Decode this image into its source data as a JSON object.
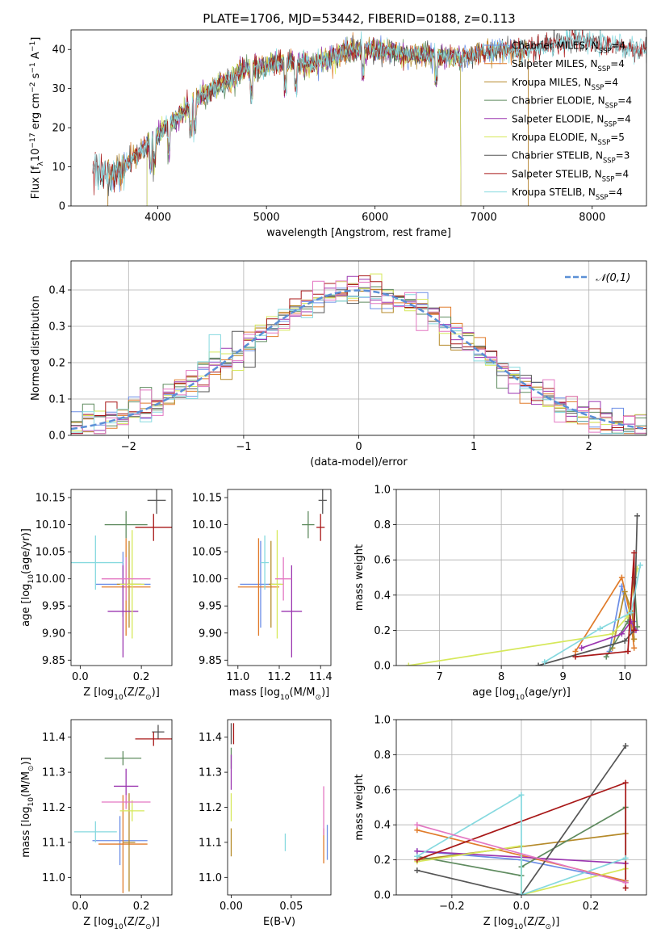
{
  "figure": {
    "title": "PLATE=1706, MJD=53442, FIBERID=0188, z=0.113",
    "colors": {
      "Chabrier MILES": "#6c8ee6",
      "Salpeter MILES": "#e07b2a",
      "Kroupa MILES": "#b58a2a",
      "Chabrier ELODIE": "#5f8b5f",
      "Salpeter ELODIE": "#9b36b0",
      "Kroupa ELODIE": "#d6e85a",
      "Chabrier STELIB": "#555555",
      "Salpeter STELIB": "#a81818",
      "Kroupa STELIB": "#86d9df",
      "extra pink": "#e377c2"
    }
  },
  "chart_data": [
    {
      "id": "spectrum",
      "type": "line",
      "xlabel": "wavelength [Angstrom, rest frame]",
      "ylabel": "Flux [f$_\\lambda$10$^{-17}$ erg cm$^{-2}$ s$^{-1}$ A$^{-1}$]",
      "ylabel_display": {
        "prefix": "Flux [f",
        "sub": "λ",
        "mid": "10",
        "sup": "−17",
        "rest": " erg cm",
        "sup2": "−2",
        "rest2": " s",
        "sup3": "−1",
        "rest3": " A",
        "sup4": "−1",
        "end": "]"
      },
      "xlim": [
        3200,
        8500
      ],
      "ylim": [
        0,
        45
      ],
      "xticks": [
        4000,
        5000,
        6000,
        7000,
        8000
      ],
      "yticks": [
        0,
        10,
        20,
        30,
        40
      ],
      "legend": "upper right",
      "legend_entries": [
        {
          "name": "Chabrier MILES",
          "nssp": "4"
        },
        {
          "name": "Salpeter MILES",
          "nssp": "4"
        },
        {
          "name": "Kroupa MILES",
          "nssp": "4"
        },
        {
          "name": "Chabrier ELODIE",
          "nssp": "4"
        },
        {
          "name": "Salpeter ELODIE",
          "nssp": "4"
        },
        {
          "name": "Kroupa ELODIE",
          "nssp": "5"
        },
        {
          "name": "Chabrier STELIB",
          "nssp": "3"
        },
        {
          "name": "Salpeter STELIB",
          "nssp": "4"
        },
        {
          "name": "Kroupa STELIB",
          "nssp": "4"
        }
      ],
      "continuum": {
        "x": [
          3400,
          3600,
          3800,
          4000,
          4200,
          4400,
          4600,
          4800,
          5000,
          5200,
          5400,
          5600,
          5800,
          6000,
          6200,
          6400,
          6600,
          6800,
          7000,
          7200,
          7400,
          7600,
          7800,
          8000,
          8200,
          8400
        ],
        "y": [
          9,
          8,
          13,
          18,
          23,
          28,
          31,
          35,
          36,
          37,
          36,
          38,
          40,
          40,
          39,
          38.5,
          38.5,
          38,
          39,
          40,
          40,
          41,
          42.5,
          41.5,
          41,
          40
        ]
      },
      "model_ranges": [
        {
          "series": "Chabrier MILES",
          "x": [
            3540,
            7410
          ]
        },
        {
          "series": "Salpeter MILES",
          "x": [
            3540,
            7410
          ]
        },
        {
          "series": "Kroupa MILES",
          "x": [
            3540,
            7410
          ]
        },
        {
          "series": "Chabrier ELODIE",
          "x": [
            3900,
            6790
          ]
        },
        {
          "series": "Salpeter ELODIE",
          "x": [
            3900,
            6790
          ]
        },
        {
          "series": "Kroupa ELODIE",
          "x": [
            3900,
            6790
          ]
        },
        {
          "series": "Chabrier STELIB",
          "x": [
            3400,
            8500
          ]
        },
        {
          "series": "Salpeter STELIB",
          "x": [
            3400,
            8500
          ]
        },
        {
          "series": "Kroupa STELIB",
          "x": [
            3400,
            8500
          ]
        }
      ]
    },
    {
      "id": "residuals",
      "type": "line",
      "xlabel": "(data-model)/error",
      "ylabel": "Normed distribution",
      "xlim": [
        -2.5,
        2.5
      ],
      "ylim": [
        0,
        0.48
      ],
      "xticks": [
        -2,
        -1,
        0,
        1,
        2
      ],
      "yticks": [
        0.0,
        0.1,
        0.2,
        0.3,
        0.4
      ],
      "grid": true,
      "legend": "upper right",
      "reference_curve": {
        "name": "𝒩(0,1)",
        "mean": 0,
        "sigma": 1,
        "style": "dashed"
      },
      "histogram_bins": {
        "start": -2.5,
        "width": 0.1
      }
    },
    {
      "id": "age_vs_Z",
      "type": "scatter",
      "xlabel": "Z [log$_{10}$(Z/Z$_\\odot$)]",
      "ylabel": "age  [log$_{10}$(age/yr)]",
      "xlim": [
        -0.03,
        0.3
      ],
      "ylim": [
        9.84,
        10.165
      ],
      "xticks": [
        0.0,
        0.2
      ],
      "yticks": [
        9.85,
        9.9,
        9.95,
        10.0,
        10.05,
        10.1,
        10.15
      ],
      "points": [
        {
          "series": "Chabrier MILES",
          "x": 0.14,
          "y": 9.99,
          "xerr": 0.09,
          "yerr": 0.06
        },
        {
          "series": "Salpeter MILES",
          "x": 0.15,
          "y": 9.985,
          "xerr": 0.08,
          "yerr": 0.09
        },
        {
          "series": "Kroupa MILES",
          "x": 0.16,
          "y": 9.99,
          "xerr": 0.04,
          "yerr": 0.08
        },
        {
          "series": "Chabrier ELODIE",
          "x": 0.15,
          "y": 10.1,
          "xerr": 0.07,
          "yerr": 0.025
        },
        {
          "series": "Salpeter ELODIE",
          "x": 0.14,
          "y": 9.94,
          "xerr": 0.05,
          "yerr": 0.085
        },
        {
          "series": "Kroupa ELODIE",
          "x": 0.17,
          "y": 9.99,
          "xerr": 0.04,
          "yerr": 0.1
        },
        {
          "series": "Chabrier STELIB",
          "x": 0.25,
          "y": 10.145,
          "xerr": 0.03,
          "yerr": 0.025
        },
        {
          "series": "Salpeter STELIB",
          "x": 0.24,
          "y": 10.095,
          "xerr": 0.06,
          "yerr": 0.025
        },
        {
          "series": "Kroupa STELIB",
          "x": 0.05,
          "y": 10.03,
          "xerr": 0.09,
          "yerr": 0.05
        },
        {
          "series": "extra pink",
          "x": 0.15,
          "y": 10.0,
          "xerr": 0.08,
          "yerr": 0.04
        }
      ]
    },
    {
      "id": "age_vs_mass",
      "type": "scatter",
      "xlabel": "mass [log$_{10}$(M/M$_\\odot$)]",
      "ylabel": "",
      "xlim": [
        10.95,
        11.45
      ],
      "ylim": [
        9.84,
        10.165
      ],
      "xticks": [
        11.0,
        11.2,
        11.4
      ],
      "yticks": [
        9.85,
        9.9,
        9.95,
        10.0,
        10.05,
        10.1,
        10.15
      ],
      "points": [
        {
          "series": "Chabrier MILES",
          "x": 11.11,
          "y": 9.99,
          "xerr": 0.1,
          "yerr": 0.08
        },
        {
          "series": "Salpeter MILES",
          "x": 11.1,
          "y": 9.985,
          "xerr": 0.1,
          "yerr": 0.09
        },
        {
          "series": "Kroupa MILES",
          "x": 11.16,
          "y": 9.99,
          "xerr": 0.01,
          "yerr": 0.08
        },
        {
          "series": "Chabrier ELODIE",
          "x": 11.34,
          "y": 10.1,
          "xerr": 0.03,
          "yerr": 0.025
        },
        {
          "series": "Salpeter ELODIE",
          "x": 11.26,
          "y": 9.94,
          "xerr": 0.05,
          "yerr": 0.085
        },
        {
          "series": "Kroupa ELODIE",
          "x": 11.19,
          "y": 9.99,
          "xerr": 0.03,
          "yerr": 0.1
        },
        {
          "series": "Chabrier STELIB",
          "x": 11.41,
          "y": 10.145,
          "xerr": 0.02,
          "yerr": 0.025
        },
        {
          "series": "Salpeter STELIB",
          "x": 11.4,
          "y": 10.095,
          "xerr": 0.02,
          "yerr": 0.025
        },
        {
          "series": "Kroupa STELIB",
          "x": 11.13,
          "y": 10.03,
          "xerr": 0.02,
          "yerr": 0.05
        },
        {
          "series": "extra pink",
          "x": 11.22,
          "y": 10.0,
          "xerr": 0.04,
          "yerr": 0.04
        }
      ]
    },
    {
      "id": "weight_vs_age",
      "type": "line",
      "xlabel": "age  [log$_{10}$(age/yr)]",
      "ylabel": "mass weight",
      "xlim": [
        6.3,
        10.35
      ],
      "ylim": [
        0,
        1.0
      ],
      "xticks": [
        7,
        8,
        9,
        10
      ],
      "yticks": [
        0.0,
        0.2,
        0.4,
        0.6,
        0.8,
        1.0
      ],
      "grid": true,
      "series": [
        {
          "name": "Chabrier MILES",
          "x": [
            9.75,
            9.95,
            10.1,
            10.15
          ],
          "y": [
            0.08,
            0.45,
            0.2,
            0.25
          ]
        },
        {
          "name": "Salpeter MILES",
          "x": [
            9.2,
            9.95,
            10.08,
            10.15
          ],
          "y": [
            0.08,
            0.5,
            0.3,
            0.1
          ]
        },
        {
          "name": "Kroupa MILES",
          "x": [
            9.8,
            10.0,
            10.12,
            10.15
          ],
          "y": [
            0.1,
            0.42,
            0.3,
            0.15
          ]
        },
        {
          "name": "Chabrier ELODIE",
          "x": [
            9.7,
            10.05,
            10.15,
            10.2
          ],
          "y": [
            0.05,
            0.25,
            0.5,
            0.22
          ]
        },
        {
          "name": "Salpeter ELODIE",
          "x": [
            9.3,
            9.95,
            10.1,
            10.18
          ],
          "y": [
            0.1,
            0.18,
            0.25,
            0.2
          ]
        },
        {
          "name": "Kroupa ELODIE",
          "x": [
            6.5,
            9.8,
            10.05,
            10.2
          ],
          "y": [
            0.0,
            0.18,
            0.28,
            0.55
          ]
        },
        {
          "name": "Chabrier STELIB",
          "x": [
            8.6,
            10.0,
            10.15,
            10.2
          ],
          "y": [
            0.0,
            0.14,
            0.2,
            0.85
          ]
        },
        {
          "name": "Salpeter STELIB",
          "x": [
            9.2,
            10.05,
            10.15,
            10.15
          ],
          "y": [
            0.05,
            0.08,
            0.64,
            0.2
          ]
        },
        {
          "name": "Kroupa STELIB",
          "x": [
            8.7,
            9.6,
            10.1,
            10.25
          ],
          "y": [
            0.02,
            0.21,
            0.3,
            0.57
          ]
        }
      ]
    },
    {
      "id": "mass_vs_Z",
      "type": "scatter",
      "xlabel": "Z [log$_{10}$(Z/Z$_\\odot$)]",
      "ylabel": "mass [log$_{10}$(M/M$_\\odot$)]",
      "xlim": [
        -0.03,
        0.3
      ],
      "ylim": [
        10.95,
        11.45
      ],
      "xticks": [
        0.0,
        0.2
      ],
      "yticks": [
        11.0,
        11.1,
        11.2,
        11.3,
        11.4
      ],
      "points": [
        {
          "series": "Chabrier MILES",
          "x": 0.13,
          "y": 11.105,
          "xerr": 0.09,
          "yerr": 0.07
        },
        {
          "series": "Salpeter MILES",
          "x": 0.14,
          "y": 11.095,
          "xerr": 0.08,
          "yerr": 0.14
        },
        {
          "series": "Kroupa MILES",
          "x": 0.16,
          "y": 11.1,
          "xerr": 0.02,
          "yerr": 0.14
        },
        {
          "series": "Chabrier ELODIE",
          "x": 0.14,
          "y": 11.34,
          "xerr": 0.06,
          "yerr": 0.02
        },
        {
          "series": "Salpeter ELODIE",
          "x": 0.15,
          "y": 11.26,
          "xerr": 0.04,
          "yerr": 0.05
        },
        {
          "series": "Kroupa ELODIE",
          "x": 0.17,
          "y": 11.19,
          "xerr": 0.04,
          "yerr": 0.03
        },
        {
          "series": "Chabrier STELIB",
          "x": 0.255,
          "y": 11.415,
          "xerr": 0.02,
          "yerr": 0.02
        },
        {
          "series": "Salpeter STELIB",
          "x": 0.24,
          "y": 11.395,
          "xerr": 0.06,
          "yerr": 0.02
        },
        {
          "series": "Kroupa STELIB",
          "x": 0.05,
          "y": 11.13,
          "xerr": 0.07,
          "yerr": 0.03
        },
        {
          "series": "extra pink",
          "x": 0.15,
          "y": 11.215,
          "xerr": 0.08,
          "yerr": 0.02
        }
      ]
    },
    {
      "id": "mass_vs_EBV",
      "type": "scatter",
      "xlabel": "E(B-V)",
      "ylabel": "",
      "xlim": [
        -0.003,
        0.083
      ],
      "ylim": [
        10.95,
        11.45
      ],
      "xticks": [
        0.0,
        0.05
      ],
      "yticks": [
        11.0,
        11.1,
        11.2,
        11.3,
        11.4
      ],
      "points": [
        {
          "series": "Chabrier MILES",
          "x": 0.08,
          "y": 11.1,
          "xerr": 0.0,
          "yerr": 0.05
        },
        {
          "series": "Salpeter MILES",
          "x": 0.077,
          "y": 11.09,
          "xerr": 0.0,
          "yerr": 0.05
        },
        {
          "series": "Kroupa MILES",
          "x": 0.0,
          "y": 11.1,
          "xerr": 0.0,
          "yerr": 0.04
        },
        {
          "series": "Chabrier ELODIE",
          "x": 0.0,
          "y": 11.34,
          "xerr": 0.0,
          "yerr": 0.03
        },
        {
          "series": "Salpeter ELODIE",
          "x": 0.0,
          "y": 11.3,
          "xerr": 0.0,
          "yerr": 0.05
        },
        {
          "series": "Kroupa ELODIE",
          "x": 0.0,
          "y": 11.2,
          "xerr": 0.0,
          "yerr": 0.04
        },
        {
          "series": "Chabrier STELIB",
          "x": 0.0,
          "y": 11.41,
          "xerr": 0.0,
          "yerr": 0.03
        },
        {
          "series": "Salpeter STELIB",
          "x": 0.002,
          "y": 11.41,
          "xerr": 0.0,
          "yerr": 0.03
        },
        {
          "series": "Kroupa STELIB",
          "x": 0.045,
          "y": 11.1,
          "xerr": 0.0,
          "yerr": 0.025
        },
        {
          "series": "extra pink",
          "x": 0.077,
          "y": 11.19,
          "xerr": 0.0,
          "yerr": 0.07
        }
      ]
    },
    {
      "id": "weight_vs_Z",
      "type": "line",
      "xlabel": "Z [log$_{10}$(Z/Z$_\\odot$)]",
      "ylabel": "mass weight",
      "xlim": [
        -0.36,
        0.36
      ],
      "ylim": [
        0,
        1.0
      ],
      "xticks": [
        -0.2,
        0.0,
        0.2
      ],
      "yticks": [
        0.0,
        0.2,
        0.4,
        0.6,
        0.8,
        1.0
      ],
      "grid": true,
      "series": [
        {
          "name": "Chabrier MILES",
          "x": [
            -0.3,
            0.0,
            0.3
          ],
          "y": [
            0.25,
            0.2,
            0.08
          ]
        },
        {
          "name": "Salpeter MILES",
          "x": [
            -0.3,
            0.3
          ],
          "y": [
            0.37,
            0.08
          ]
        },
        {
          "name": "Kroupa MILES",
          "x": [
            -0.3,
            0.3
          ],
          "y": [
            0.2,
            0.35
          ]
        },
        {
          "name": "Chabrier ELODIE",
          "x": [
            -0.3,
            0.0,
            0.0,
            0.3,
            0.3
          ],
          "y": [
            0.22,
            0.11,
            0.16,
            0.5,
            0.07
          ]
        },
        {
          "name": "Salpeter ELODIE",
          "x": [
            -0.3,
            0.3
          ],
          "y": [
            0.25,
            0.18
          ]
        },
        {
          "name": "Kroupa ELODIE",
          "x": [
            -0.3,
            0.0,
            0.0,
            0.3
          ],
          "y": [
            0.19,
            0.28,
            0.0,
            0.15
          ]
        },
        {
          "name": "Chabrier STELIB",
          "x": [
            -0.3,
            0.0,
            0.3
          ],
          "y": [
            0.14,
            0.0,
            0.85
          ]
        },
        {
          "name": "Salpeter STELIB",
          "x": [
            -0.3,
            0.3,
            0.3
          ],
          "y": [
            0.2,
            0.64,
            0.04
          ]
        },
        {
          "name": "Kroupa STELIB",
          "x": [
            -0.3,
            0.0,
            0.0,
            0.3
          ],
          "y": [
            0.22,
            0.57,
            0.0,
            0.21
          ]
        },
        {
          "name": "extra pink",
          "x": [
            -0.3,
            0.3
          ],
          "y": [
            0.4,
            0.07
          ]
        }
      ]
    }
  ]
}
